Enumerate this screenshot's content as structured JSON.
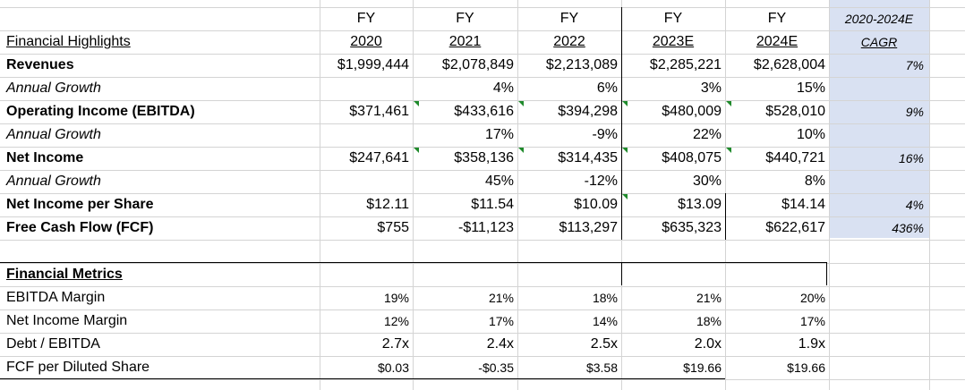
{
  "header": {
    "fy_prefix": "FY",
    "years": [
      "2020",
      "2021",
      "2022",
      "2023E",
      "2024E"
    ],
    "cagr_line1": "2020-2024E",
    "cagr_line2": "CAGR"
  },
  "highlights": {
    "title": "Financial Highlights",
    "rows": [
      {
        "label": "Revenues",
        "bold": true,
        "italic": false,
        "values": [
          "$1,999,444",
          "$2,078,849",
          "$2,213,089",
          "$2,285,221",
          "$2,628,004"
        ],
        "cagr": "7%"
      },
      {
        "label": "Annual Growth",
        "bold": false,
        "italic": true,
        "values": [
          "",
          "4%",
          "6%",
          "3%",
          "15%"
        ],
        "cagr": ""
      },
      {
        "label": "Operating Income (EBITDA)",
        "bold": true,
        "italic": false,
        "values": [
          "$371,461",
          "$433,616",
          "$394,298",
          "$480,009",
          "$528,010"
        ],
        "cagr": "9%"
      },
      {
        "label": "Annual Growth",
        "bold": false,
        "italic": true,
        "values": [
          "",
          "17%",
          "-9%",
          "22%",
          "10%"
        ],
        "cagr": ""
      },
      {
        "label": "Net Income",
        "bold": true,
        "italic": false,
        "values": [
          "$247,641",
          "$358,136",
          "$314,435",
          "$408,075",
          "$440,721"
        ],
        "cagr": "16%"
      },
      {
        "label": "Annual Growth",
        "bold": false,
        "italic": true,
        "values": [
          "",
          "45%",
          "-12%",
          "30%",
          "8%"
        ],
        "cagr": ""
      },
      {
        "label": "Net Income per Share",
        "bold": true,
        "italic": false,
        "values": [
          "$12.11",
          "$11.54",
          "$10.09",
          "$13.09",
          "$14.14"
        ],
        "cagr": "4%"
      },
      {
        "label": "Free Cash Flow (FCF)",
        "bold": true,
        "italic": false,
        "values": [
          "$755",
          "-$11,123",
          "$113,297",
          "$635,323",
          "$622,617"
        ],
        "cagr": "436%"
      }
    ]
  },
  "metrics": {
    "title": "Financial Metrics",
    "rows": [
      {
        "label": "EBITDA Margin",
        "values": [
          "19%",
          "21%",
          "18%",
          "21%",
          "20%"
        ]
      },
      {
        "label": "Net Income Margin",
        "values": [
          "12%",
          "17%",
          "14%",
          "18%",
          "17%"
        ]
      },
      {
        "label": "Debt / EBITDA",
        "values": [
          "2.7x",
          "2.4x",
          "2.5x",
          "2.0x",
          "1.9x"
        ]
      },
      {
        "label": "FCF per Diluted Share",
        "values": [
          "$0.03",
          "-$0.35",
          "$3.58",
          "$19.66",
          "$19.66"
        ]
      }
    ]
  },
  "colors": {
    "cagr_fill": "#d9e1f2",
    "gridline": "#d4d4d4",
    "error_indicator": "#1f8a2b"
  }
}
